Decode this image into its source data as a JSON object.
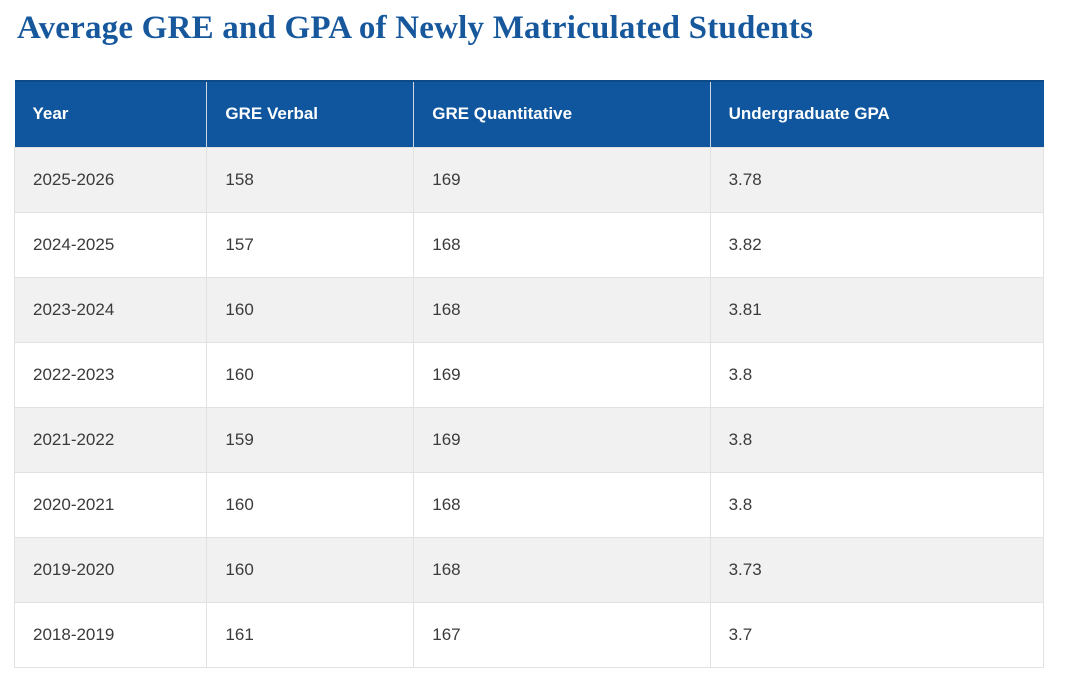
{
  "page": {
    "title": "Average GRE and GPA of Newly Matriculated Students"
  },
  "table": {
    "columns": [
      "Year",
      "GRE Verbal",
      "GRE Quantitative",
      "Undergraduate GPA"
    ],
    "rows": [
      [
        "2025-2026",
        "158",
        "169",
        "3.78"
      ],
      [
        "2024-2025",
        "157",
        "168",
        "3.82"
      ],
      [
        "2023-2024",
        "160",
        "168",
        "3.81"
      ],
      [
        "2022-2023",
        "160",
        "169",
        "3.8"
      ],
      [
        "2021-2022",
        "159",
        "169",
        "3.8"
      ],
      [
        "2020-2021",
        "160",
        "168",
        "3.8"
      ],
      [
        "2019-2020",
        "160",
        "168",
        "3.73"
      ],
      [
        "2018-2019",
        "161",
        "167",
        "3.7"
      ]
    ]
  },
  "colors": {
    "header_bg": "#0f569f",
    "header_top": "#0d4a87",
    "header_text": "#ffffff",
    "title_text": "#17589d",
    "row_stripe": "#f1f1f2",
    "row_white": "#ffffff",
    "border": "#e2e2e2",
    "header_divider": "#cfd6de",
    "cell_text": "#3b3b3b"
  },
  "chart_data": {
    "type": "table",
    "title": "Average GRE and GPA of Newly Matriculated Students",
    "columns": [
      "Year",
      "GRE Verbal",
      "GRE Quantitative",
      "Undergraduate GPA"
    ],
    "categories": [
      "2025-2026",
      "2024-2025",
      "2023-2024",
      "2022-2023",
      "2021-2022",
      "2020-2021",
      "2019-2020",
      "2018-2019"
    ],
    "series": [
      {
        "name": "GRE Verbal",
        "values": [
          158,
          157,
          160,
          160,
          159,
          160,
          160,
          161
        ]
      },
      {
        "name": "GRE Quantitative",
        "values": [
          169,
          168,
          168,
          169,
          169,
          168,
          168,
          167
        ]
      },
      {
        "name": "Undergraduate GPA",
        "values": [
          3.78,
          3.82,
          3.81,
          3.8,
          3.8,
          3.8,
          3.73,
          3.7
        ]
      }
    ]
  }
}
